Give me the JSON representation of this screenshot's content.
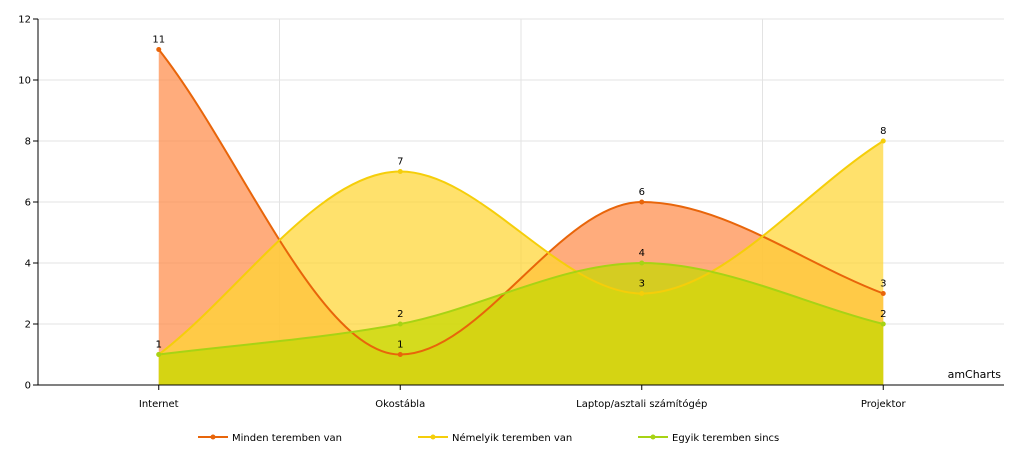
{
  "chart_data": {
    "type": "area",
    "categories": [
      "Internet",
      "Okostábla",
      "Laptop/asztali számítógép",
      "Projektor"
    ],
    "series": [
      {
        "name": "Minden teremben van",
        "values": [
          11,
          1,
          6,
          3
        ],
        "color": "#E8650A",
        "fill": "#FF8C4A"
      },
      {
        "name": "Némelyik teremben van",
        "values": [
          1,
          7,
          3,
          8
        ],
        "color": "#F5CE0A",
        "fill": "#FFD633"
      },
      {
        "name": "Egyik teremben sincs",
        "values": [
          1,
          2,
          4,
          2
        ],
        "color": "#A7D314",
        "fill": "#C5D800"
      }
    ],
    "ylim": [
      0,
      12
    ],
    "yticks": [
      "0",
      "2",
      "4",
      "6",
      "8",
      "10",
      "12"
    ],
    "grid": true,
    "smoothed": true,
    "legend_position": "bottom"
  },
  "credit": "amCharts"
}
